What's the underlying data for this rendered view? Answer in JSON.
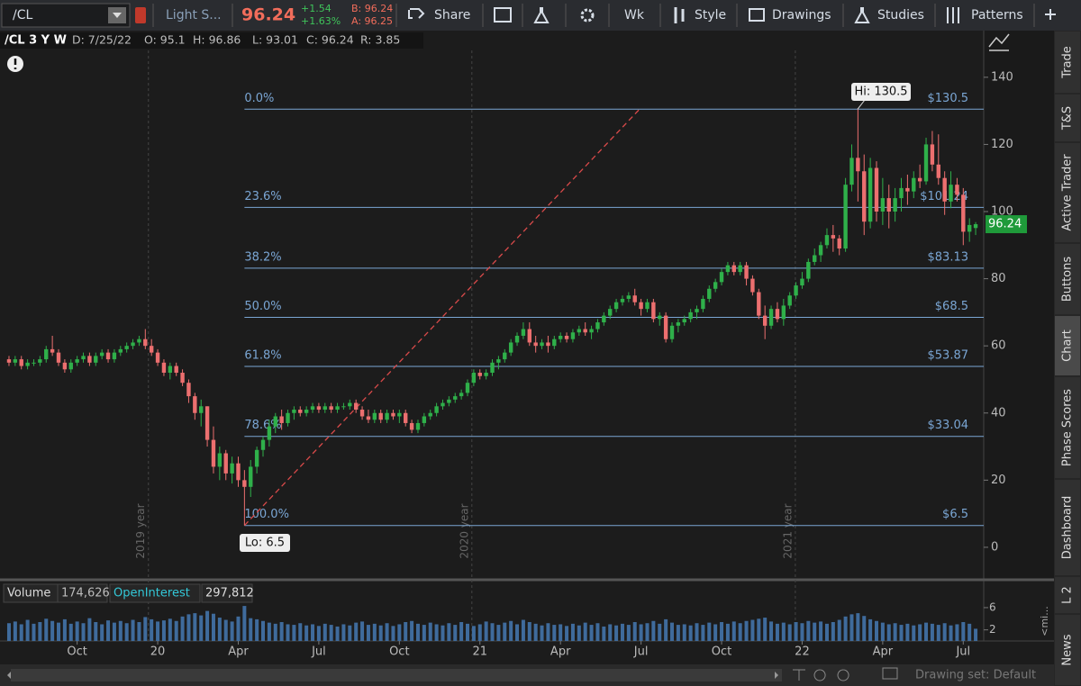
{
  "toolbar": {
    "symbol": "/CL",
    "description": "Light S...",
    "last": "96.24",
    "change": "+1.54",
    "change_pct": "+1.63%",
    "bid": "B: 96.24",
    "ask": "A: 96.25",
    "buttons": [
      "Share",
      "Wk",
      "Style",
      "Drawings",
      "Studies",
      "Patterns"
    ]
  },
  "header": {
    "title": "/CL 3 Y W",
    "date": "D: 7/25/22",
    "open": "O: 95.1",
    "high": "H: 96.86",
    "low": "L: 93.01",
    "close": "C: 96.24",
    "range": "R: 3.85"
  },
  "side_tabs": [
    "Trade",
    "T&S",
    "Active Trader",
    "Buttons",
    "Chart",
    "Phase Scores",
    "Dashboard",
    "L 2",
    "News"
  ],
  "footer": {
    "drawing_set": "Drawing set: Default",
    "collapse": "<mi..."
  },
  "chart_data": {
    "type": "candlestick",
    "up_color": "#2fb04a",
    "down_color": "#ec6f6f",
    "fib_color": "#7aa6d4",
    "trend_color": "#d94a4a",
    "ylim": [
      -8.6,
      153.9
    ],
    "yticks": [
      0,
      20,
      40,
      60,
      80,
      100,
      120,
      140
    ],
    "xlim": [
      -1.45,
      157.3
    ],
    "xticks": [
      {
        "value": 11,
        "label": "Oct"
      },
      {
        "value": 24,
        "label": "20"
      },
      {
        "value": 37,
        "label": "Apr"
      },
      {
        "value": 50,
        "label": "Jul"
      },
      {
        "value": 63,
        "label": "Oct"
      },
      {
        "value": 76,
        "label": "21"
      },
      {
        "value": 89,
        "label": "Apr"
      },
      {
        "value": 102,
        "label": "Jul"
      },
      {
        "value": 115,
        "label": "Oct"
      },
      {
        "value": 128,
        "label": "22"
      },
      {
        "value": 141,
        "label": "Apr"
      },
      {
        "value": 154,
        "label": "Jul"
      }
    ],
    "year_lines": [
      {
        "value": 22.5,
        "label": "2019 year"
      },
      {
        "value": 74.7,
        "label": "2020 year"
      },
      {
        "value": 126.9,
        "label": "2021 year"
      }
    ],
    "fib_levels": [
      {
        "label": "0.0%",
        "price": 130.5,
        "price_label": "$130.5"
      },
      {
        "label": "23.6%",
        "price": 101.24,
        "price_label": "$101.24"
      },
      {
        "label": "38.2%",
        "price": 83.13,
        "price_label": "$83.13"
      },
      {
        "label": "50.0%",
        "price": 68.5,
        "price_label": "$68.5"
      },
      {
        "label": "61.8%",
        "price": 53.87,
        "price_label": "$53.87"
      },
      {
        "label": "78.6%",
        "price": 33.04,
        "price_label": "$33.04"
      },
      {
        "label": "100.0%",
        "price": 6.5,
        "price_label": "$6.5"
      }
    ],
    "annotations": [
      "Hi: 130.5",
      "Lo: 6.5"
    ],
    "last_price": 96.24,
    "candles": [
      [
        56,
        57,
        54,
        55
      ],
      [
        55,
        57,
        54,
        56
      ],
      [
        56,
        57,
        53,
        54
      ],
      [
        54,
        56,
        53,
        55
      ],
      [
        55,
        56,
        54,
        55
      ],
      [
        55,
        57,
        54,
        56
      ],
      [
        56,
        60,
        55,
        59
      ],
      [
        59,
        63,
        57,
        58
      ],
      [
        58,
        59,
        54,
        55
      ],
      [
        55,
        56,
        52,
        53
      ],
      [
        53,
        56,
        52,
        55
      ],
      [
        55,
        57,
        54,
        56
      ],
      [
        56,
        58,
        55,
        57
      ],
      [
        57,
        58,
        54,
        55
      ],
      [
        55,
        58,
        54,
        57
      ],
      [
        57,
        59,
        56,
        58
      ],
      [
        58,
        59,
        55,
        56
      ],
      [
        56,
        59,
        55,
        58
      ],
      [
        58,
        60,
        57,
        59
      ],
      [
        59,
        61,
        58,
        60
      ],
      [
        60,
        62,
        59,
        61
      ],
      [
        61,
        63,
        60,
        62
      ],
      [
        62,
        65,
        59,
        60
      ],
      [
        60,
        62,
        57,
        58
      ],
      [
        58,
        59,
        54,
        55
      ],
      [
        55,
        56,
        51,
        52
      ],
      [
        52,
        55,
        50,
        54
      ],
      [
        54,
        55,
        51,
        52
      ],
      [
        52,
        53,
        48,
        49
      ],
      [
        49,
        50,
        43,
        45
      ],
      [
        45,
        46,
        38,
        40
      ],
      [
        40,
        44,
        36,
        42
      ],
      [
        42,
        42,
        30,
        32
      ],
      [
        32,
        36,
        22,
        24
      ],
      [
        24,
        30,
        20,
        28
      ],
      [
        28,
        29,
        20,
        22
      ],
      [
        22,
        27,
        19,
        25
      ],
      [
        25,
        27,
        18,
        20
      ],
      [
        20,
        23,
        6.5,
        18
      ],
      [
        18,
        26,
        15,
        24
      ],
      [
        24,
        30,
        22,
        29
      ],
      [
        29,
        33,
        27,
        32
      ],
      [
        32,
        38,
        30,
        36
      ],
      [
        36,
        40,
        34,
        39
      ],
      [
        39,
        41,
        35,
        37
      ],
      [
        37,
        41,
        36,
        40
      ],
      [
        40,
        42,
        38,
        41
      ],
      [
        41,
        42,
        39,
        40
      ],
      [
        40,
        42,
        39,
        41
      ],
      [
        41,
        43,
        40,
        42
      ],
      [
        42,
        43,
        40,
        41
      ],
      [
        41,
        43,
        40,
        42
      ],
      [
        42,
        43,
        40,
        41
      ],
      [
        41,
        43,
        40,
        42
      ],
      [
        42,
        43,
        41,
        42
      ],
      [
        42,
        44,
        41,
        43
      ],
      [
        43,
        44,
        40,
        41
      ],
      [
        41,
        42,
        38,
        39
      ],
      [
        39,
        41,
        37,
        38
      ],
      [
        38,
        41,
        37,
        40
      ],
      [
        40,
        41,
        37,
        38
      ],
      [
        38,
        41,
        37,
        40
      ],
      [
        40,
        41,
        38,
        39
      ],
      [
        39,
        41,
        37,
        40
      ],
      [
        40,
        41,
        36,
        37
      ],
      [
        37,
        38,
        34,
        35
      ],
      [
        35,
        38,
        34,
        37
      ],
      [
        37,
        40,
        36,
        39
      ],
      [
        39,
        41,
        38,
        40
      ],
      [
        40,
        43,
        39,
        42
      ],
      [
        42,
        44,
        41,
        43
      ],
      [
        43,
        45,
        42,
        44
      ],
      [
        44,
        46,
        43,
        45
      ],
      [
        45,
        47,
        44,
        46
      ],
      [
        46,
        50,
        45,
        49
      ],
      [
        49,
        53,
        48,
        52
      ],
      [
        52,
        53,
        50,
        51
      ],
      [
        51,
        53,
        50,
        52
      ],
      [
        52,
        56,
        51,
        55
      ],
      [
        55,
        57,
        53,
        56
      ],
      [
        56,
        59,
        55,
        58
      ],
      [
        58,
        62,
        57,
        61
      ],
      [
        61,
        64,
        60,
        63
      ],
      [
        63,
        67,
        62,
        65
      ],
      [
        65,
        67,
        60,
        61
      ],
      [
        61,
        63,
        58,
        60
      ],
      [
        60,
        62,
        59,
        61
      ],
      [
        61,
        63,
        58,
        60
      ],
      [
        60,
        63,
        59,
        62
      ],
      [
        62,
        64,
        61,
        63
      ],
      [
        63,
        64,
        61,
        62
      ],
      [
        62,
        65,
        61,
        64
      ],
      [
        64,
        66,
        63,
        65
      ],
      [
        65,
        67,
        63,
        64
      ],
      [
        64,
        66,
        62,
        65
      ],
      [
        65,
        68,
        64,
        67
      ],
      [
        67,
        70,
        66,
        69
      ],
      [
        69,
        72,
        68,
        71
      ],
      [
        71,
        74,
        70,
        73
      ],
      [
        73,
        75,
        72,
        74
      ],
      [
        74,
        76,
        73,
        75
      ],
      [
        75,
        77,
        72,
        73
      ],
      [
        73,
        74,
        69,
        71
      ],
      [
        71,
        74,
        70,
        73
      ],
      [
        73,
        74,
        67,
        68
      ],
      [
        68,
        70,
        66,
        69
      ],
      [
        69,
        70,
        61,
        62
      ],
      [
        62,
        67,
        61,
        66
      ],
      [
        66,
        68,
        64,
        67
      ],
      [
        67,
        69,
        66,
        68
      ],
      [
        68,
        71,
        67,
        70
      ],
      [
        70,
        72,
        68,
        71
      ],
      [
        71,
        75,
        70,
        74
      ],
      [
        74,
        78,
        73,
        77
      ],
      [
        77,
        80,
        76,
        79
      ],
      [
        79,
        83,
        78,
        82
      ],
      [
        82,
        85,
        81,
        84
      ],
      [
        84,
        85,
        81,
        82
      ],
      [
        82,
        85,
        81,
        84
      ],
      [
        84,
        85,
        78,
        80
      ],
      [
        80,
        81,
        75,
        76
      ],
      [
        76,
        77,
        68,
        69
      ],
      [
        69,
        72,
        62,
        66
      ],
      [
        66,
        72,
        65,
        71
      ],
      [
        71,
        73,
        67,
        68
      ],
      [
        68,
        74,
        66,
        72
      ],
      [
        72,
        76,
        71,
        75
      ],
      [
        75,
        79,
        74,
        78
      ],
      [
        78,
        82,
        77,
        80
      ],
      [
        80,
        86,
        79,
        85
      ],
      [
        85,
        89,
        84,
        87
      ],
      [
        87,
        91,
        85,
        90
      ],
      [
        90,
        95,
        89,
        93
      ],
      [
        93,
        96,
        88,
        92
      ],
      [
        92,
        93,
        87,
        89
      ],
      [
        89,
        110,
        88,
        108
      ],
      [
        108,
        120,
        106,
        116
      ],
      [
        116,
        130.5,
        103,
        112
      ],
      [
        112,
        117,
        93,
        97
      ],
      [
        97,
        116,
        95,
        113
      ],
      [
        113,
        115,
        97,
        100
      ],
      [
        100,
        110,
        96,
        104
      ],
      [
        104,
        108,
        95,
        100
      ],
      [
        100,
        107,
        97,
        104
      ],
      [
        104,
        110,
        100,
        107
      ],
      [
        107,
        111,
        102,
        106
      ],
      [
        106,
        112,
        104,
        110
      ],
      [
        110,
        114,
        107,
        109
      ],
      [
        109,
        122,
        108,
        120
      ],
      [
        120,
        124,
        112,
        114
      ],
      [
        114,
        123,
        108,
        110
      ],
      [
        110,
        112,
        99,
        103
      ],
      [
        103,
        112,
        101,
        108
      ],
      [
        108,
        110,
        103,
        105
      ],
      [
        105,
        107,
        90,
        94
      ],
      [
        94,
        98,
        91,
        96
      ],
      [
        95.1,
        96.86,
        93.01,
        96.24
      ]
    ],
    "volume": {
      "name": "Volume",
      "value_label": "174,626",
      "oi_name": "OpenInterest",
      "oi_label": "297,812",
      "color": "#3f6b9c",
      "ylim": [
        0,
        6.8
      ],
      "yticks": [
        2,
        6
      ],
      "values": [
        3.2,
        3.5,
        3.0,
        3.8,
        3.1,
        3.4,
        4.0,
        3.6,
        3.3,
        3.9,
        3.1,
        3.5,
        3.2,
        4.1,
        3.4,
        3.0,
        3.7,
        3.3,
        3.6,
        3.2,
        3.8,
        3.4,
        4.3,
        3.9,
        3.5,
        3.7,
        4.0,
        3.6,
        4.4,
        4.8,
        5.0,
        4.6,
        5.4,
        4.9,
        4.2,
        3.8,
        3.5,
        4.4,
        6.3,
        4.1,
        3.9,
        3.6,
        3.3,
        3.1,
        3.4,
        3.0,
        2.9,
        3.2,
        2.8,
        3.0,
        2.7,
        3.1,
        2.9,
        2.6,
        3.0,
        2.8,
        3.3,
        3.5,
        2.9,
        3.1,
        2.8,
        3.2,
        2.7,
        3.0,
        3.4,
        3.6,
        3.1,
        2.9,
        3.3,
        3.0,
        2.8,
        3.2,
        2.9,
        3.4,
        3.1,
        2.7,
        3.0,
        3.5,
        3.2,
        2.9,
        3.3,
        3.6,
        3.0,
        3.8,
        3.4,
        3.1,
        2.8,
        3.2,
        2.9,
        3.0,
        2.7,
        3.1,
        2.8,
        3.3,
        2.9,
        3.2,
        2.6,
        3.0,
        2.8,
        3.1,
        2.9,
        3.4,
        3.0,
        3.2,
        3.6,
        3.1,
        3.9,
        3.3,
        2.9,
        3.0,
        2.8,
        3.2,
        2.9,
        3.3,
        3.0,
        3.4,
        3.1,
        3.5,
        3.2,
        3.6,
        3.8,
        4.0,
        4.2,
        3.5,
        3.1,
        3.3,
        3.0,
        3.4,
        3.2,
        3.6,
        3.3,
        3.5,
        3.1,
        3.4,
        3.8,
        4.4,
        4.8,
        5.0,
        4.5,
        3.9,
        3.6,
        3.3,
        3.0,
        3.2,
        2.9,
        3.1,
        2.8,
        3.0,
        3.3,
        3.1,
        2.9,
        3.2,
        2.8,
        3.0,
        3.4,
        3.1,
        2.2
      ]
    }
  }
}
